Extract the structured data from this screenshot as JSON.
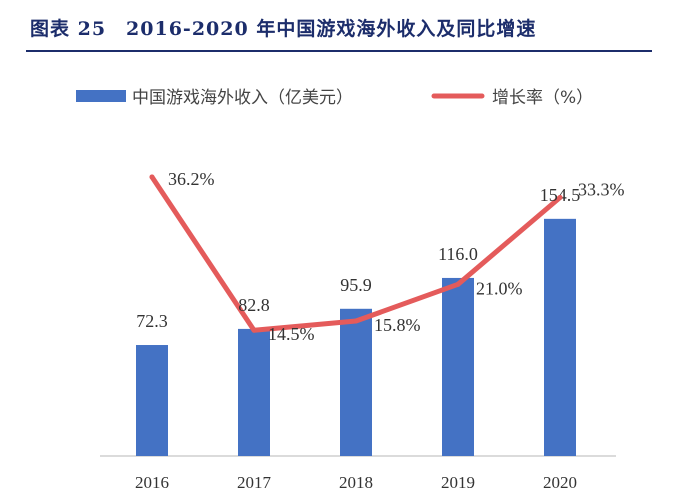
{
  "title": "图表 25　2016-2020 年中国游戏海外收入及同比增速",
  "colors": {
    "bar": "#4472c4",
    "line": "#e45b5b",
    "title": "#1c2d6b"
  },
  "chart_data": {
    "type": "bar+line",
    "categories": [
      "2016",
      "2017",
      "2018",
      "2019",
      "2020"
    ],
    "series": [
      {
        "name": "中国游戏海外收入（亿美元）",
        "type": "bar",
        "axis": "left",
        "values": [
          72.3,
          82.8,
          95.9,
          116.0,
          154.5
        ],
        "labels": [
          "72.3",
          "82.8",
          "95.9",
          "116.0",
          "154.5"
        ]
      },
      {
        "name": "增长率（%）",
        "type": "line",
        "axis": "right",
        "values": [
          36.2,
          14.5,
          15.8,
          21.0,
          33.3
        ],
        "labels": [
          "36.2%",
          "14.5%",
          "15.8%",
          "21.0%",
          "33.3%"
        ]
      }
    ],
    "legend_position": "top",
    "grid": false
  }
}
